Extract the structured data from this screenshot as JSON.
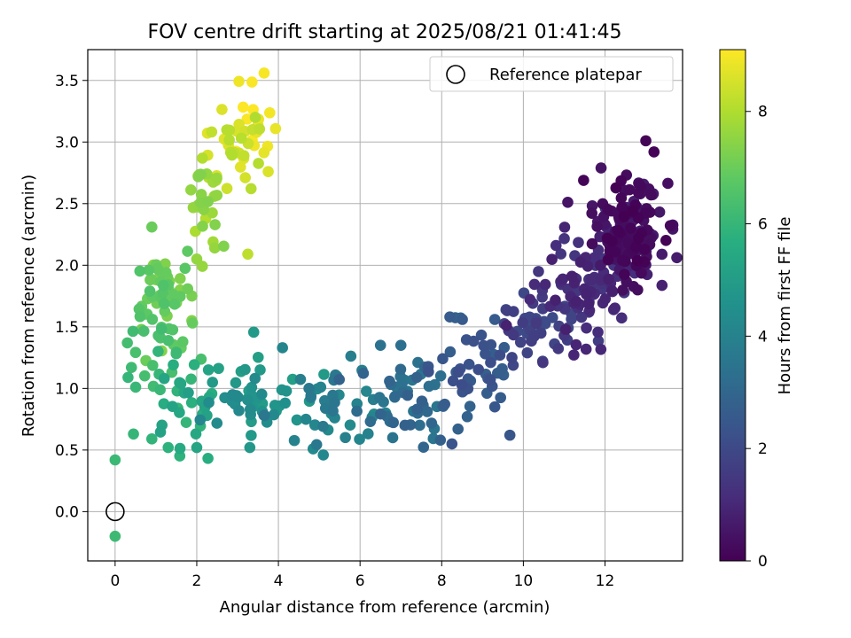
{
  "chart_data": {
    "type": "scatter",
    "title": "FOV centre drift starting at 2025/08/21 01:41:45",
    "xlabel": "Angular distance from reference (arcmin)",
    "ylabel": "Rotation from reference (arcmin)",
    "xlim": [
      -0.67,
      13.9
    ],
    "ylim": [
      -0.4,
      3.75
    ],
    "xticks": [
      0,
      2,
      4,
      6,
      8,
      10,
      12
    ],
    "yticks": [
      0.0,
      0.5,
      1.0,
      1.5,
      2.0,
      2.5,
      3.0,
      3.5
    ],
    "xtick_labels": [
      "0",
      "2",
      "4",
      "6",
      "8",
      "10",
      "12"
    ],
    "ytick_labels": [
      "0.0",
      "0.5",
      "1.0",
      "1.5",
      "2.0",
      "2.5",
      "3.0",
      "3.5"
    ],
    "grid": true,
    "colormap": "viridis",
    "colorbar": {
      "label": "Hours from first FF file",
      "min": 0,
      "max": 9.1,
      "ticks": [
        0,
        2,
        4,
        6,
        8
      ],
      "tick_labels": [
        "0",
        "2",
        "4",
        "6",
        "8"
      ]
    },
    "legend": {
      "position": "top-right",
      "entries": [
        "Reference platepar"
      ]
    },
    "reference_point": {
      "x": 0,
      "y": 0
    },
    "cluster_points": [
      {
        "x": 13.2,
        "y": 2.92,
        "hours": 0.05
      },
      {
        "x": 13.0,
        "y": 3.01,
        "hours": 0.1
      },
      {
        "x": 13.1,
        "y": 2.43,
        "hours": 0.2
      },
      {
        "x": 12.8,
        "y": 1.8,
        "hours": 0.3
      },
      {
        "x": 10.8,
        "y": 2.16,
        "hours": 1.2
      },
      {
        "x": 11.0,
        "y": 1.43,
        "hours": 1.4
      },
      {
        "x": 9.3,
        "y": 1.56,
        "hours": 2.6
      },
      {
        "x": 9.3,
        "y": 0.85,
        "hours": 2.5
      },
      {
        "x": 8.2,
        "y": 1.58,
        "hours": 2.6
      },
      {
        "x": 8.4,
        "y": 0.67,
        "hours": 2.8
      },
      {
        "x": 7.0,
        "y": 1.35,
        "hours": 3.3
      },
      {
        "x": 6.5,
        "y": 1.35,
        "hours": 3.4
      },
      {
        "x": 6.8,
        "y": 0.6,
        "hours": 3.5
      },
      {
        "x": 5.1,
        "y": 0.46,
        "hours": 4.2
      },
      {
        "x": 4.1,
        "y": 1.33,
        "hours": 4.1
      },
      {
        "x": 3.3,
        "y": 0.52,
        "hours": 4.8
      },
      {
        "x": 2.0,
        "y": 0.52,
        "hours": 5.3
      },
      {
        "x": 1.3,
        "y": 0.52,
        "hours": 5.8
      },
      {
        "x": 0.9,
        "y": 0.59,
        "hours": 5.9
      },
      {
        "x": 0.45,
        "y": 0.63,
        "hours": 6.0
      },
      {
        "x": 0.0,
        "y": 0.42,
        "hours": 6.1
      },
      {
        "x": 0.0,
        "y": -0.2,
        "hours": 6.15
      },
      {
        "x": 0.4,
        "y": 1.17,
        "hours": 6.2
      },
      {
        "x": 0.3,
        "y": 1.37,
        "hours": 6.3
      },
      {
        "x": 0.9,
        "y": 2.31,
        "hours": 7.0
      },
      {
        "x": 2.0,
        "y": 2.05,
        "hours": 7.6
      },
      {
        "x": 2.4,
        "y": 2.19,
        "hours": 7.8
      },
      {
        "x": 3.25,
        "y": 2.09,
        "hours": 8.2
      },
      {
        "x": 3.75,
        "y": 2.76,
        "hours": 8.6
      },
      {
        "x": 3.65,
        "y": 3.56,
        "hours": 9.0
      }
    ],
    "segments": [
      {
        "cx": 12.55,
        "cy": 2.28,
        "sx": 0.42,
        "sy": 0.2,
        "h0": 0.0,
        "h1": 0.9,
        "n": 165
      },
      {
        "cx": 11.45,
        "cy": 1.85,
        "sx": 0.55,
        "sy": 0.22,
        "h0": 0.8,
        "h1": 1.5,
        "n": 85
      },
      {
        "cx": 10.2,
        "cy": 1.45,
        "sx": 0.5,
        "sy": 0.17,
        "h0": 1.4,
        "h1": 2.2,
        "n": 45
      },
      {
        "cx": 8.6,
        "cy": 1.15,
        "sx": 0.6,
        "sy": 0.2,
        "h0": 2.1,
        "h1": 2.9,
        "n": 45
      },
      {
        "cx": 7.2,
        "cy": 0.9,
        "sx": 0.6,
        "sy": 0.17,
        "h0": 2.8,
        "h1": 3.6,
        "n": 45
      },
      {
        "cx": 5.3,
        "cy": 0.88,
        "sx": 0.8,
        "sy": 0.16,
        "h0": 3.5,
        "h1": 4.3,
        "n": 45
      },
      {
        "cx": 3.2,
        "cy": 0.92,
        "sx": 0.75,
        "sy": 0.17,
        "h0": 4.2,
        "h1": 5.1,
        "n": 45
      },
      {
        "cx": 1.7,
        "cy": 0.85,
        "sx": 0.5,
        "sy": 0.2,
        "h0": 5.0,
        "h1": 6.0,
        "n": 30
      },
      {
        "cx": 1.0,
        "cy": 1.3,
        "sx": 0.4,
        "sy": 0.22,
        "h0": 5.9,
        "h1": 6.6,
        "n": 22
      },
      {
        "cx": 1.15,
        "cy": 1.8,
        "sx": 0.35,
        "sy": 0.17,
        "h0": 6.5,
        "h1": 7.4,
        "n": 55
      },
      {
        "cx": 2.25,
        "cy": 2.5,
        "sx": 0.35,
        "sy": 0.18,
        "h0": 7.3,
        "h1": 8.1,
        "n": 30
      },
      {
        "cx": 2.9,
        "cy": 2.95,
        "sx": 0.35,
        "sy": 0.18,
        "h0": 8.0,
        "h1": 8.7,
        "n": 30
      },
      {
        "cx": 3.4,
        "cy": 3.2,
        "sx": 0.3,
        "sy": 0.18,
        "h0": 8.6,
        "h1": 9.1,
        "n": 15
      }
    ]
  }
}
